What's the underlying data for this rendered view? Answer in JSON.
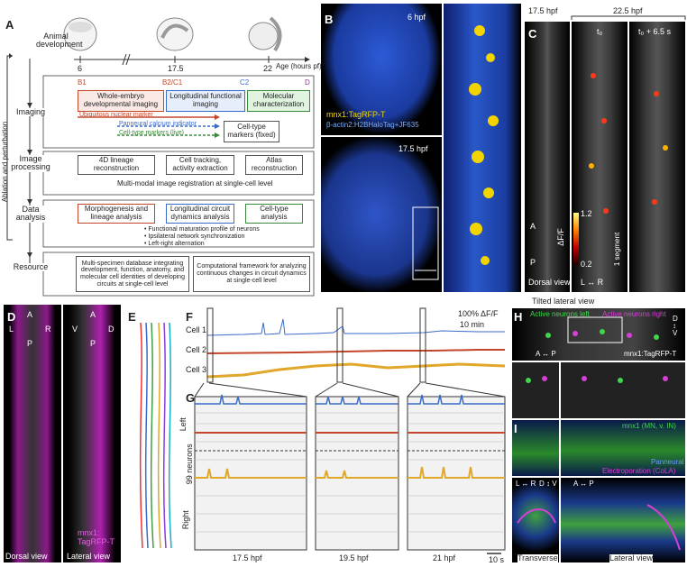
{
  "panels": {
    "A": "A",
    "B": "B",
    "C": "C",
    "D": "D",
    "E": "E",
    "F": "F",
    "G": "G",
    "H": "H",
    "I": "I"
  },
  "panelA": {
    "side_label": "Ablation and perturbation",
    "rows": [
      "Animal development",
      "Imaging",
      "Image processing",
      "Data analysis",
      "Resource"
    ],
    "ages": [
      "6",
      "17.5",
      "22"
    ],
    "age_axis": "Age (hours pf)",
    "stage_marks": [
      "B1",
      "B2/C1",
      "C2",
      "D"
    ],
    "imaging_boxes": [
      "Whole-embryo developmental imaging",
      "Longitudinal functional imaging",
      "Molecular characterization"
    ],
    "markers": [
      "Ubiquitous nuclear marker",
      "Panneural calcium indicator",
      "Cell-type markers (live)"
    ],
    "fixed_box": "Cell-type markers (fixed)",
    "proc_boxes": [
      "4D lineage reconstruction",
      "Cell tracking, activity extraction",
      "Atlas reconstruction"
    ],
    "registration": "Multi-modal image registration at single-cell level",
    "analysis_boxes": [
      "Morphogenesis and lineage analysis",
      "Longitudinal circuit dynamics analysis",
      "Cell-type analysis"
    ],
    "bullets": [
      "• Functional maturation profile of neurons",
      "• Ipsilateral network synchronization",
      "• Left-right alternation"
    ],
    "resource_boxes": [
      "Multi-specimen database integrating development, function, anatomy, and molecular cell identities of developing circuits at single-cell level",
      "Computational framework for analyzing continuous changes in circuit dynamics at single-cell level"
    ]
  },
  "panelB": {
    "t1": "6 hpf",
    "t2": "17.5 hpf",
    "legend1": "mnx1:TagRFP-T",
    "legend2": "β-actin2:H2BHaloTag+JF635"
  },
  "panelC": {
    "t1": "17.5 hpf",
    "t2": "22.5 hpf",
    "t3": "t₀",
    "t4": "t₀ + 6.5 s",
    "cb_top": "1.2",
    "cb_bot": "0.2",
    "cb_label": "ΔF/F",
    "axis_a": "A",
    "axis_p": "P",
    "view": "Dorsal view",
    "segment": "1 segment",
    "lr": "L ↔ R"
  },
  "panelD": {
    "a": "A",
    "p": "P",
    "l": "L",
    "r": "R",
    "v": "V",
    "d": "D",
    "view1": "Dorsal view",
    "view2": "Lateral view",
    "marker": "mnx1:\nTagRFP-T"
  },
  "panelF": {
    "cells": [
      "Cell 1",
      "Cell 2",
      "Cell 3"
    ],
    "scale_y": "100% ΔF/F",
    "scale_x": "10 min"
  },
  "panelG": {
    "left": "Left",
    "right": "Right",
    "neurons": "99 neurons",
    "times": [
      "17.5 hpf",
      "19.5 hpf",
      "21 hpf"
    ],
    "scale": "10 s"
  },
  "panelH": {
    "title": "Tilted lateral view",
    "left": "Active neurons left",
    "right": "Active neurons right",
    "ap": "A ↔ P",
    "dv": "D\n↕\nV",
    "marker": "mnx1:TagRFP-T"
  },
  "panelI": {
    "l1": "mnx1 (MN, v. IN)",
    "l2": "Panneural",
    "l3": "Electroporation (CoLA)",
    "lr": "L ↔ R",
    "dv": "D ↕ V",
    "ap": "A ↔ P",
    "view1": "Transverse",
    "view2": "Lateral view"
  },
  "colors": {
    "cell1": "#3b6bc9",
    "cell2": "#c4462a",
    "cell3": "#e0a72a",
    "magenta": "#d63fd6",
    "green": "#3fd64a"
  }
}
